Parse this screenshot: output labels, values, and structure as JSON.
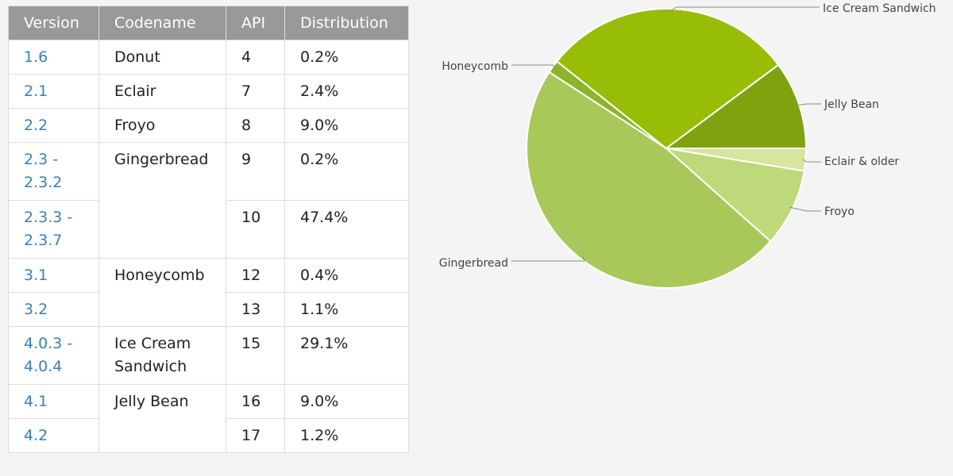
{
  "table": {
    "headers": [
      "Version",
      "Codename",
      "API",
      "Distribution"
    ],
    "rows": [
      {
        "version": "1.6",
        "codename": "Donut",
        "api": "4",
        "distribution": "0.2%"
      },
      {
        "version": "2.1",
        "codename": "Eclair",
        "api": "7",
        "distribution": "2.4%"
      },
      {
        "version": "2.2",
        "codename": "Froyo",
        "api": "8",
        "distribution": "9.0%"
      },
      {
        "version": "2.3 -\n2.3.2",
        "codename": "Gingerbread",
        "api": "9",
        "distribution": "0.2%"
      },
      {
        "version": "2.3.3 -\n2.3.7",
        "codename": "",
        "api": "10",
        "distribution": "47.4%"
      },
      {
        "version": "3.1",
        "codename": "Honeycomb",
        "api": "12",
        "distribution": "0.4%"
      },
      {
        "version": "3.2",
        "codename": "",
        "api": "13",
        "distribution": "1.1%"
      },
      {
        "version": "4.0.3 -\n4.0.4",
        "codename": "Ice Cream\nSandwich",
        "api": "15",
        "distribution": "29.1%"
      },
      {
        "version": "4.1",
        "codename": "Jelly Bean",
        "api": "16",
        "distribution": "9.0%"
      },
      {
        "version": "4.2",
        "codename": "",
        "api": "17",
        "distribution": "1.2%"
      }
    ]
  },
  "chart_data": {
    "type": "pie",
    "title": "",
    "slices": [
      {
        "label": "Eclair & older",
        "value": 2.6,
        "color": "#d6e69e"
      },
      {
        "label": "Froyo",
        "value": 9.0,
        "color": "#bdd97a"
      },
      {
        "label": "Gingerbread",
        "value": 47.6,
        "color": "#a8c95a"
      },
      {
        "label": "Honeycomb",
        "value": 1.5,
        "color": "#8bb52a"
      },
      {
        "label": "Ice Cream Sandwich",
        "value": 29.1,
        "color": "#97bd06"
      },
      {
        "label": "Jelly Bean",
        "value": 10.2,
        "color": "#7ea30e"
      }
    ]
  }
}
